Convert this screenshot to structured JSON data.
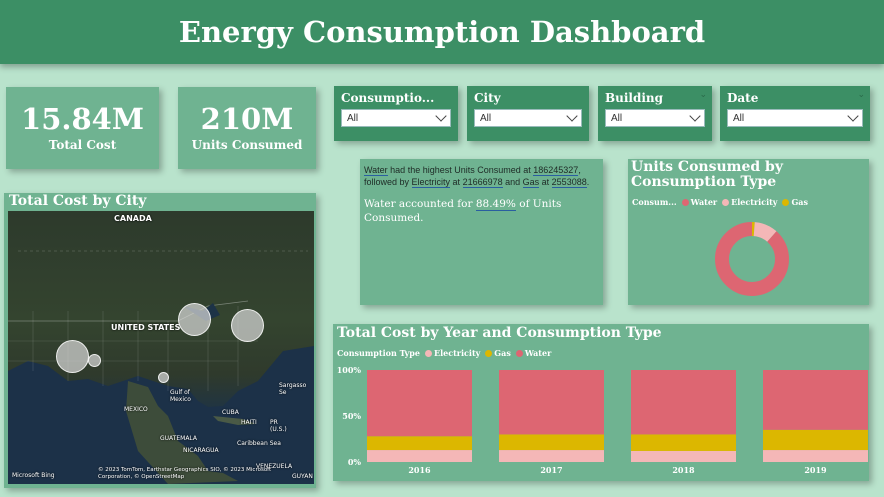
{
  "header": {
    "title": "Energy Consumption Dashboard"
  },
  "kpis": [
    {
      "value": "15.84M",
      "label": "Total Cost"
    },
    {
      "value": "210M",
      "label": "Units Consumed"
    }
  ],
  "slicers": [
    {
      "title": "Consumptio...",
      "value": "All"
    },
    {
      "title": "City",
      "value": "All"
    },
    {
      "title": "Building",
      "value": "All"
    },
    {
      "title": "Date",
      "value": "All"
    }
  ],
  "map": {
    "title": "Total Cost by City",
    "labels": {
      "canada": "CANADA",
      "united_states": "UNITED STATES",
      "gulf": "Gulf of Mexico",
      "mexico": "MEXICO",
      "cuba": "CUBA",
      "haiti": "HAITI",
      "pr": "PR (U.S.)",
      "guatemala": "GUATEMALA",
      "nicaragua": "NICARAGUA",
      "caribbean": "Caribbean Sea",
      "venezuela": "VENEZUELA",
      "sargasso": "Sargasso Se",
      "guyana": "GUYAN",
      "bing": "Microsoft Bing",
      "copyright": "© 2023 TomTom, Earthstar Geographics SIO, © 2023 Microsoft Corporation, © OpenStreetMap"
    }
  },
  "insight": {
    "line1_a": "Water",
    "line1_b": " had the highest Units Consumed at ",
    "line1_c": "186245327",
    "line1_d": ", followed by ",
    "line1_e": "Electricity",
    "line1_f": " at ",
    "line1_g": "21666978",
    "line1_h": " and ",
    "line1_i": "Gas",
    "line1_j": " at ",
    "line1_k": "2553088",
    "line1_l": ".",
    "line2_a": "Water accounted for ",
    "line2_b": "88.49%",
    "line2_c": " of Units Consumed."
  },
  "donut": {
    "title": "Units Consumed by Consumption Type",
    "legend_title": "Consum...",
    "legend": [
      "Water",
      "Electricity",
      "Gas"
    ]
  },
  "stacked": {
    "title": "Total Cost by Year and Consumption Type",
    "legend_title": "Consumption Type",
    "legend": [
      "Electricity",
      "Gas",
      "Water"
    ],
    "y_ticks": [
      "100%",
      "50%",
      "0%"
    ]
  },
  "colors": {
    "water": "#dd6672",
    "electricity": "#f4b7b7",
    "gas": "#dcb700",
    "panel": "#6fb391",
    "header": "#3c8f65"
  },
  "chart_data": [
    {
      "type": "pie",
      "title": "Units Consumed by Consumption Type",
      "categories": [
        "Water",
        "Electricity",
        "Gas"
      ],
      "values": [
        186245327,
        21666978,
        2553088
      ]
    },
    {
      "type": "bar",
      "stacked": true,
      "normalized": true,
      "title": "Total Cost by Year and Consumption Type",
      "categories": [
        "2016",
        "2017",
        "2018",
        "2019"
      ],
      "series": [
        {
          "name": "Electricity",
          "values": [
            13,
            13,
            12,
            13
          ]
        },
        {
          "name": "Gas",
          "values": [
            15,
            17,
            18,
            22
          ]
        },
        {
          "name": "Water",
          "values": [
            72,
            70,
            70,
            65
          ]
        }
      ],
      "ylim": [
        0,
        100
      ]
    }
  ]
}
